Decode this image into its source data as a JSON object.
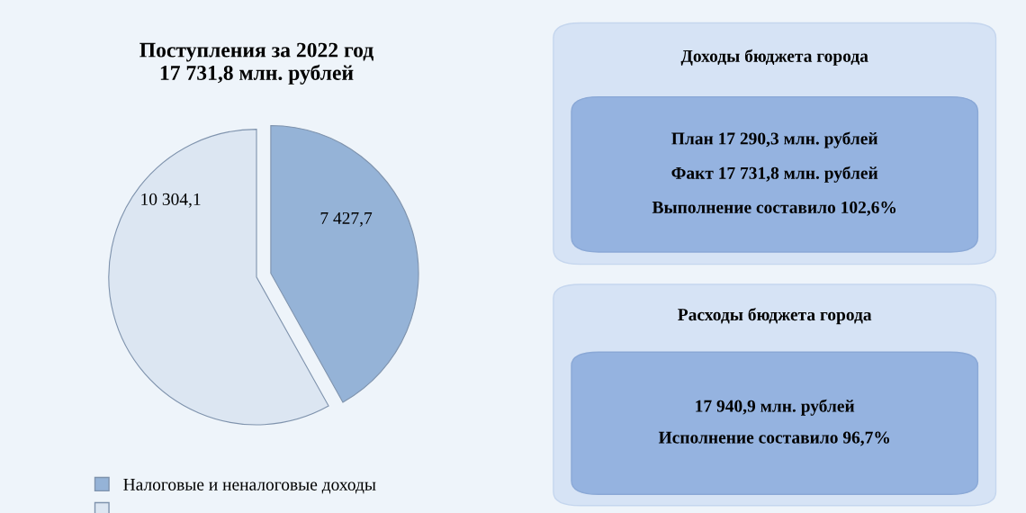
{
  "chart_data": [
    {
      "type": "pie",
      "title": "Поступления за 2022 год\n17 731,8 млн. рублей",
      "categories": [
        "Налоговые и неналоговые доходы",
        null
      ],
      "values": [
        7427.7,
        10304.1
      ],
      "value_labels": [
        "7 427,7",
        "10 304,1"
      ],
      "colors": [
        "#95b3d7",
        "#dce6f2"
      ],
      "legend": "bottom"
    },
    {
      "type": "other",
      "title": "Доходы бюджета города",
      "annotations": [
        "План 17 290,3 млн. рублей",
        "Факт 17 731,8 млн. рублей",
        "Выполнение составило 102,6%"
      ]
    },
    {
      "type": "other",
      "title": "Расходы бюджета города",
      "annotations": [
        "17 940,9 млн. рублей",
        "Исполнение составило 96,7%"
      ]
    }
  ]
}
